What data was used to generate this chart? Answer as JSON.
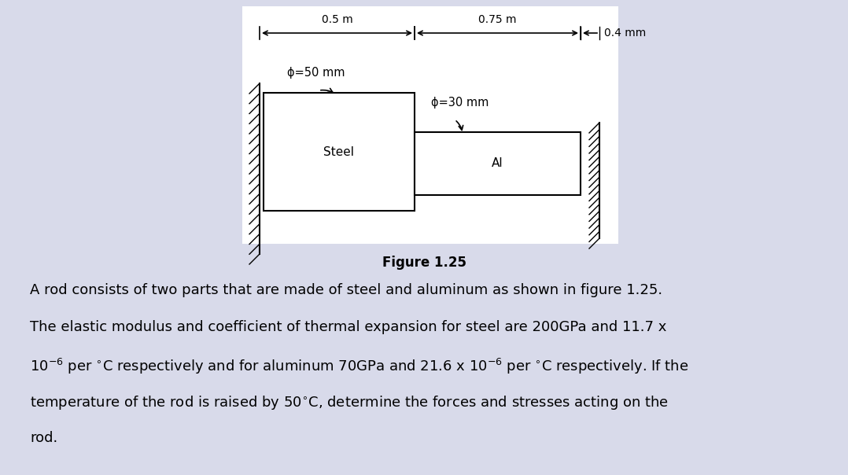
{
  "bg_color": "#d8daea",
  "diagram_bg": "#ffffff",
  "fig_width": 10.78,
  "fig_height": 6.04,
  "figure_caption": "Figure 1.25",
  "steel_label": "Steel",
  "al_label": "Al",
  "phi_steel": "ϕ=50 mm",
  "phi_al": "ϕ=30 mm",
  "dim_steel": "0.5 m",
  "dim_al": "0.75 m",
  "dim_gap": "0.4 mm",
  "text_line1": "A rod consists of two parts that are made of steel and aluminum as shown in figure 1.25.",
  "text_line2": "The elastic modulus and coefficient of thermal expansion for steel are 200GPa and 11.7 x",
  "text_line3a": "10",
  "text_line3b": " per ",
  "text_line3c": "C respectively and for aluminum 70GPa and 21.6 x 10",
  "text_line3d": " per ",
  "text_line3e": "C respectively. If the",
  "text_line4": "temperature of the rod is raised by 50",
  "text_line4b": "C, determine the forces and stresses acting on the",
  "text_line5": "rod."
}
